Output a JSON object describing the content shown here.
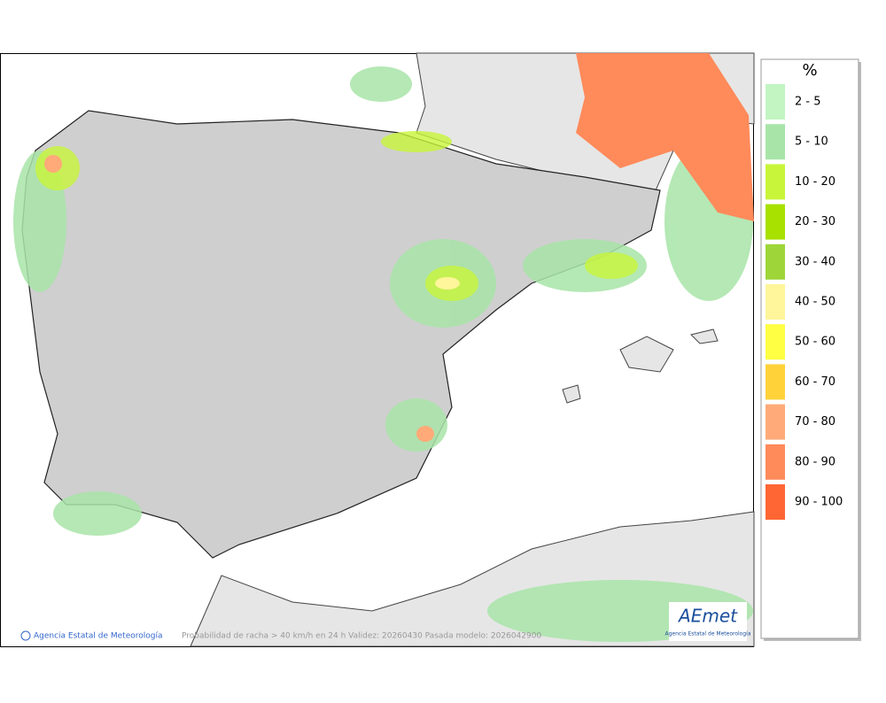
{
  "legend": {
    "title": "%",
    "items": [
      {
        "label": "2 - 5",
        "color": "#c2f5c2"
      },
      {
        "label": "5 - 10",
        "color": "#a8e4a8"
      },
      {
        "label": "10 - 20",
        "color": "#c8f53a"
      },
      {
        "label": "20 - 30",
        "color": "#a8e000"
      },
      {
        "label": "30 - 40",
        "color": "#9ed63a"
      },
      {
        "label": "40 - 50",
        "color": "#fff59a"
      },
      {
        "label": "50 - 60",
        "color": "#ffff44"
      },
      {
        "label": "60 - 70",
        "color": "#ffd23a"
      },
      {
        "label": "70 - 80",
        "color": "#ffaa78"
      },
      {
        "label": "80 - 90",
        "color": "#ff8a5a"
      },
      {
        "label": "90 - 100",
        "color": "#ff6633"
      }
    ]
  },
  "footer": {
    "credit": "Agencia Estatal de Meteorología",
    "caption": "Probabilidad de racha > 40 km/h en 24 h  Validez: 20260430 Pasada modelo: 2026042900"
  },
  "logo": {
    "name": "AEmet",
    "subtitle": "Agencia Estatal de Meteorología"
  }
}
